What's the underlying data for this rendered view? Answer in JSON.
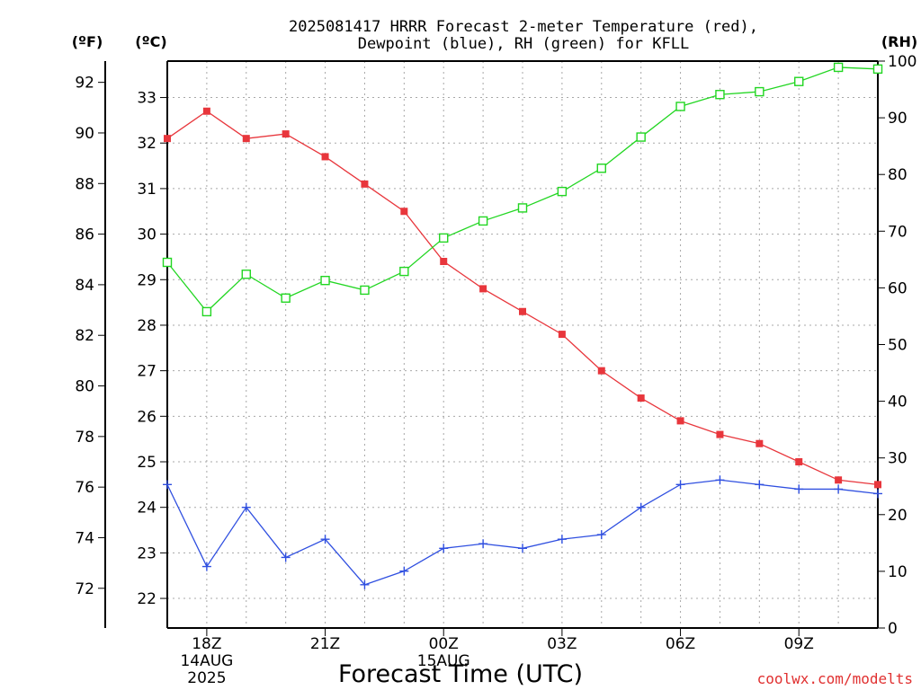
{
  "chart_data": {
    "type": "line",
    "title_line1": "2025081417 HRRR Forecast 2-meter Temperature (red),",
    "title_line2": "Dewpoint (blue), RH (green) for KFLL",
    "xlabel": "Forecast Time (UTC)",
    "unit_f": "(ºF)",
    "unit_c": "(ºC)",
    "unit_rh": "(RH)",
    "credit": "coolwx.com/modelts",
    "x_hours": [
      17,
      18,
      19,
      20,
      21,
      22,
      23,
      24,
      25,
      26,
      27,
      28,
      29,
      30,
      31,
      32,
      33,
      34,
      35
    ],
    "x_ticks": [
      {
        "hour": 18,
        "label": "18Z",
        "sub1": "14AUG",
        "sub2": "2025"
      },
      {
        "hour": 21,
        "label": "21Z",
        "sub1": "",
        "sub2": ""
      },
      {
        "hour": 24,
        "label": "00Z",
        "sub1": "15AUG",
        "sub2": ""
      },
      {
        "hour": 27,
        "label": "03Z",
        "sub1": "",
        "sub2": ""
      },
      {
        "hour": 30,
        "label": "06Z",
        "sub1": "",
        "sub2": ""
      },
      {
        "hour": 33,
        "label": "09Z",
        "sub1": "",
        "sub2": ""
      }
    ],
    "xlim": [
      17,
      35
    ],
    "ylim_c": [
      21.35,
      33.8
    ],
    "ylim_f": [
      70.43,
      92.84
    ],
    "ylim_rh": [
      0,
      100
    ],
    "yticks_c": [
      22,
      23,
      24,
      25,
      26,
      27,
      28,
      29,
      30,
      31,
      32,
      33
    ],
    "yticks_f": [
      72,
      74,
      76,
      78,
      80,
      82,
      84,
      86,
      88,
      90,
      92
    ],
    "yticks_rh": [
      0,
      10,
      20,
      30,
      40,
      50,
      60,
      70,
      80,
      90,
      100
    ],
    "series": [
      {
        "name": "Temperature",
        "axis": "c",
        "color": "#e8363c",
        "marker": "filled-square",
        "values": [
          32.1,
          32.7,
          32.1,
          32.2,
          31.7,
          31.1,
          30.5,
          29.4,
          28.8,
          28.3,
          27.8,
          27.0,
          26.4,
          25.9,
          25.6,
          25.4,
          25.0,
          24.6,
          24.5
        ]
      },
      {
        "name": "Dewpoint",
        "axis": "c",
        "color": "#2f4fe0",
        "marker": "plus",
        "values": [
          24.5,
          22.7,
          24.0,
          22.9,
          23.3,
          22.3,
          22.6,
          23.1,
          23.2,
          23.1,
          23.3,
          23.4,
          24.0,
          24.5,
          24.6,
          24.5,
          24.4,
          24.4,
          24.3
        ]
      },
      {
        "name": "RH",
        "axis": "rh",
        "color": "#22d622",
        "marker": "open-square",
        "values": [
          64.5,
          55.8,
          62.4,
          58.2,
          61.3,
          59.6,
          62.9,
          68.8,
          71.8,
          74.1,
          77.0,
          81.1,
          86.6,
          92.0,
          94.1,
          94.6,
          96.4,
          98.9,
          98.6
        ]
      }
    ]
  }
}
